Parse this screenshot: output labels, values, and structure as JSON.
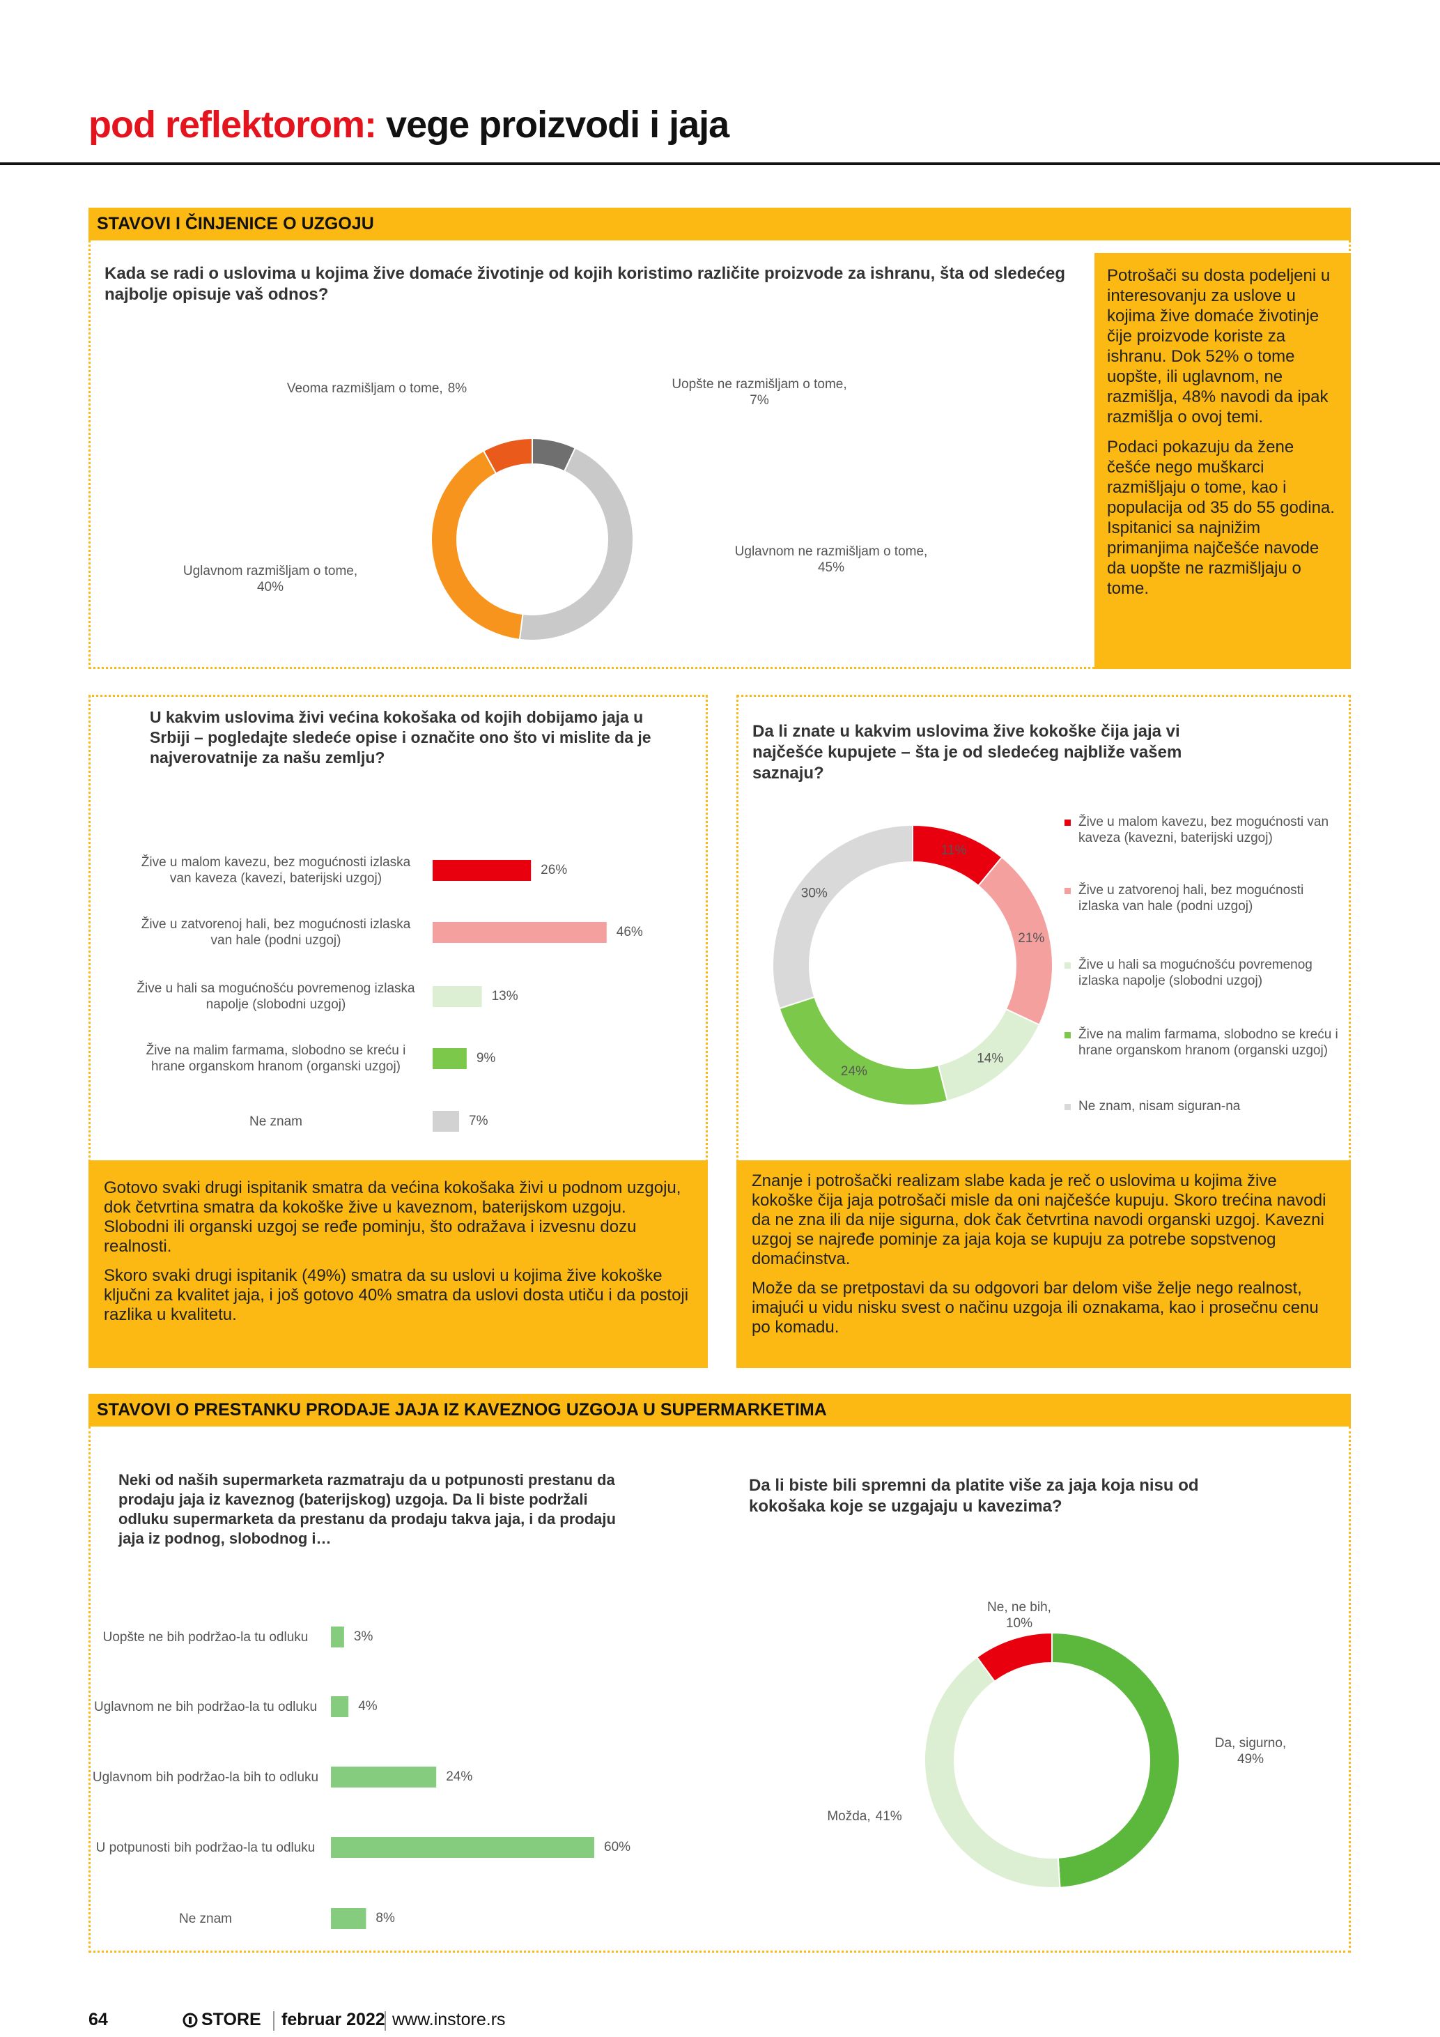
{
  "header": {
    "accent": "pod reflektorom:",
    "title": "vege proizvodi i jaja"
  },
  "sections": [
    "STAVOVI I ČINJENICE O UZGOJU",
    "STAVOVI O PRESTANKU PRODAJE JAJA IZ KAVEZNOG UZGOJA U SUPERMARKETIMA"
  ],
  "panels": [
    [
      "Potrošači su dosta podeljeni u interesovanju za uslove u kojima žive domaće životinje čije proizvode koriste za ishranu. Dok 52% o tome uopšte, ili uglavnom, ne razmišlja, 48% navodi da ipak razmišlja o ovoj temi.",
      "Podaci pokazuju da žene češće nego muškarci razmišljaju o tome, kao i populacija od 35 do 55 godina. Ispitanici sa najnižim primanjima najčešće navode da uopšte ne razmišljaju o tome."
    ],
    [
      "Gotovo svaki drugi ispitanik smatra da većina kokošaka živi u podnom uzgoju, dok četvrtina smatra da kokoške žive u kaveznom, baterijskom uzgoju. Slobodni ili organski uzgoj se ređe pominju, što odražava i izvesnu dozu realnosti.",
      "Skoro svaki drugi ispitanik (49%) smatra da su uslovi u kojima žive kokoške ključni za kvalitet jaja, i još gotovo 40% smatra da uslovi dosta utiču i da postoji razlika u kvalitetu."
    ],
    [
      "Znanje i potrošački realizam slabe kada je reč o uslovima u kojima žive kokoške čija jaja potrošači misle da oni najčešće kupuju. Skoro trećina navodi da ne zna ili da nije sigurna, dok čak četvrtina navodi organski uzgoj. Kavezni uzgoj se najređe pominje za jaja koja se kupuju za potrebe sopstvenog domaćinstva.",
      "Može da se pretpostavi da su odgovori bar delom više želje nego realnost, imajući u vidu nisku svest o načinu uzgoja ili oznakama, kao i prosečnu cenu po komadu."
    ]
  ],
  "chart_data": [
    {
      "type": "donut",
      "title": "Kada se radi o uslovima u kojima žive domaće životinje od kojih koristimo različite proizvode za ishranu, šta od sledećeg najbolje opisuje vaš odnos?",
      "categories": [
        "Uopšte ne razmišljam o tome,",
        "Uglavnom ne razmišljam o tome,",
        "Uglavnom razmišljam o tome,",
        "Veoma razmišljam o tome,"
      ],
      "values": [
        7,
        45,
        40,
        8
      ],
      "value_labels": [
        "7%",
        "45%",
        "40%",
        "8%"
      ],
      "colors": [
        "#6f6f6f",
        "#c9c9c9",
        "#f7941d",
        "#ea5b1b"
      ]
    },
    {
      "type": "bar",
      "title": "U kakvim uslovima živi većina kokošaka od kojih dobijamo jaja u Srbiji – pogledajte sledeće opise i označite ono što vi mislite da je najverovatnije za našu zemlju?",
      "categories": [
        "Žive u malom kavezu, bez mogućnosti izlaska van kaveza (kavezi, baterijski uzgoj)",
        "Žive u zatvorenoj hali, bez mogućnosti izlaska van hale (podni uzgoj)",
        "Žive u hali sa mogućnošću povremenog izlaska napolje (slobodni uzgoj)",
        "Žive na malim farmama, slobodno se kreću i hrane organskom hranom (organski uzgoj)",
        "Ne znam"
      ],
      "values": [
        26,
        46,
        13,
        9,
        7
      ],
      "value_labels": [
        "26%",
        "46%",
        "13%",
        "9%",
        "7%"
      ],
      "colors": [
        "#e8000e",
        "#f4a09e",
        "#dcefd2",
        "#7cc84a",
        "#d2d2d2"
      ]
    },
    {
      "type": "donut",
      "title": "Da li znate u kakvim uslovima žive kokoške čija jaja vi najčešće kupujete – šta je od sledećeg najbliže vašem saznaju?",
      "categories": [
        "Žive u malom kavezu, bez mogućnosti van kaveza (kavezni, baterijski uzgoj)",
        "Žive u zatvorenoj hali, bez mogućnosti izlaska van hale (podni uzgoj)",
        "Žive u hali sa mogućnošću povremenog izlaska napolje (slobodni uzgoj)",
        "Žive na malim farmama, slobodno se kreću i hrane organskom hranom (organski uzgoj)",
        "Ne znam, nisam siguran-na"
      ],
      "values": [
        11,
        21,
        14,
        24,
        30
      ],
      "value_labels": [
        "11%",
        "21%",
        "14%",
        "24%",
        "30%"
      ],
      "colors": [
        "#e8000e",
        "#f4a09e",
        "#dcefd2",
        "#7cc84a",
        "#d9d9d9"
      ]
    },
    {
      "type": "bar",
      "title": "Neki od naših supermarketa razmatraju da u potpunosti prestanu da prodaju jaja iz kaveznog (baterijskog) uzgoja. Da li biste podržali odluku supermarketa da prestanu da prodaju takva jaja, i da prodaju jaja iz podnog, slobodnog i…",
      "categories": [
        "Uopšte ne bih podržao-la tu odluku",
        "Uglavnom ne bih podržao-la tu odluku",
        "Uglavnom bih podržao-la bih to odluku",
        "U potpunosti bih podržao-la tu odluku",
        "Ne znam"
      ],
      "values": [
        3,
        4,
        24,
        60,
        8
      ],
      "value_labels": [
        "3%",
        "4%",
        "24%",
        "60%",
        "8%"
      ],
      "color": "#86cc7e"
    },
    {
      "type": "donut",
      "title": "Da li biste bili spremni da platite više za jaja koja nisu od kokošaka koje se uzgajaju u kavezima?",
      "categories": [
        "Da, sigurno,",
        "Možda,",
        "Ne, ne bih,"
      ],
      "values": [
        49,
        41,
        10
      ],
      "value_labels": [
        "49%",
        "41%",
        "10%"
      ],
      "colors": [
        "#5cb83c",
        "#dcefd2",
        "#e8000e"
      ]
    }
  ],
  "footer": {
    "page": "64",
    "brand": "STORE",
    "date": "februar 2022",
    "url": "www.instore.rs"
  }
}
